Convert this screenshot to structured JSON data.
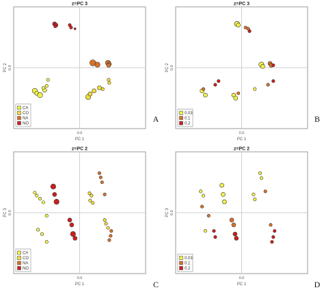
{
  "figure": {
    "panel_letters": [
      "A",
      "B",
      "C",
      "D"
    ]
  },
  "chart_data": [
    {
      "type": "scatter",
      "title": "z=PC 3",
      "xlabel": "PC 1",
      "ylabel": "PC 2",
      "xlim": [
        -1,
        1
      ],
      "ylim": [
        -1,
        1
      ],
      "xtick_label": "0.0",
      "ytick_label": "0.0",
      "legend": {
        "position": "bottom-left",
        "entries": [
          "CA",
          "CO",
          "NA",
          "NO"
        ],
        "colors": [
          "#f2f24a",
          "#f4dd38",
          "#d9732a",
          "#cc1f1f"
        ]
      },
      "series": [
        {
          "name": "CA",
          "color": "#f2f24a",
          "points": [
            [
              -0.68,
              -0.38,
              5
            ],
            [
              -0.65,
              -0.42,
              4
            ],
            [
              -0.6,
              -0.45,
              5
            ],
            [
              -0.53,
              -0.37,
              4
            ],
            [
              -0.5,
              -0.3,
              3
            ],
            [
              -0.55,
              -0.33,
              3
            ],
            [
              -0.48,
              -0.2,
              3
            ]
          ]
        },
        {
          "name": "CO",
          "color": "#f4dd38",
          "points": [
            [
              0.13,
              -0.48,
              5
            ],
            [
              0.16,
              -0.43,
              4
            ],
            [
              0.22,
              -0.38,
              4
            ],
            [
              0.3,
              -0.33,
              4
            ],
            [
              0.45,
              -0.25,
              3
            ],
            [
              0.35,
              -0.35,
              3
            ],
            [
              0.44,
              -0.2,
              3
            ]
          ]
        },
        {
          "name": "NA",
          "color": "#d9732a",
          "points": [
            [
              0.2,
              0.08,
              6
            ],
            [
              0.27,
              0.05,
              5
            ],
            [
              0.43,
              0.08,
              5
            ],
            [
              0.45,
              0.06,
              4
            ],
            [
              0.44,
              0.04,
              4
            ]
          ]
        },
        {
          "name": "NO",
          "color": "#cc1f1f",
          "points": [
            [
              -0.38,
              0.72,
              4
            ],
            [
              -0.36,
              0.7,
              4
            ],
            [
              -0.37,
              0.68,
              3
            ],
            [
              -0.15,
              0.7,
              3
            ],
            [
              -0.13,
              0.66,
              3
            ],
            [
              -0.07,
              0.64,
              2
            ]
          ]
        }
      ]
    },
    {
      "type": "scatter",
      "title": "z=PC 3",
      "xlabel": "PC 1",
      "ylabel": "PC 2",
      "xlim": [
        -1,
        1
      ],
      "ylim": [
        -1,
        1
      ],
      "xtick_label": "0.0",
      "ytick_label": "0.0",
      "legend": {
        "position": "bottom-left",
        "entries": [
          "0.03",
          "0.1",
          "0.2"
        ],
        "colors": [
          "#f2f24a",
          "#d9732a",
          "#cc1f1f"
        ]
      },
      "series": [
        {
          "name": "0.03",
          "color": "#f2f24a",
          "points": [
            [
              -0.07,
              0.72,
              5
            ],
            [
              -0.05,
              0.7,
              4
            ],
            [
              0.3,
              0.05,
              5
            ],
            [
              0.32,
              0.02,
              4
            ],
            [
              -0.6,
              -0.38,
              4
            ],
            [
              -0.55,
              -0.45,
              4
            ],
            [
              -0.12,
              -0.45,
              4
            ],
            [
              0.2,
              -0.35,
              3
            ],
            [
              -0.09,
              -0.5,
              4
            ]
          ]
        },
        {
          "name": "0.1",
          "color": "#d9732a",
          "points": [
            [
              0.06,
              0.66,
              3
            ],
            [
              0.1,
              0.64,
              3
            ],
            [
              0.43,
              0.07,
              4
            ],
            [
              0.45,
              0.04,
              4
            ],
            [
              -0.58,
              -0.35,
              3
            ],
            [
              0.4,
              -0.28,
              3
            ],
            [
              -0.05,
              -0.42,
              3
            ]
          ]
        },
        {
          "name": "0.2",
          "color": "#cc1f1f",
          "points": [
            [
              0.12,
              0.6,
              3
            ],
            [
              0.48,
              0.04,
              3
            ],
            [
              -0.35,
              -0.22,
              3
            ],
            [
              -0.4,
              -0.28,
              3
            ],
            [
              0.48,
              -0.22,
              3
            ]
          ]
        }
      ]
    },
    {
      "type": "scatter",
      "title": "z=PC 2",
      "xlabel": "PC 1",
      "ylabel": "PC 3",
      "xlim": [
        -1,
        1
      ],
      "ylim": [
        -1,
        1
      ],
      "xtick_label": "0.0",
      "ytick_label": "0.0",
      "legend": {
        "position": "bottom-left",
        "entries": [
          "CA",
          "CO",
          "NA",
          "NO"
        ],
        "colors": [
          "#f2f24a",
          "#f4dd38",
          "#d9732a",
          "#cc1f1f"
        ]
      },
      "series": [
        {
          "name": "CA",
          "color": "#f2f24a",
          "points": [
            [
              -0.68,
              0.33,
              3
            ],
            [
              -0.65,
              0.28,
              3
            ],
            [
              -0.6,
              0.23,
              3
            ],
            [
              -0.55,
              0.17,
              3
            ],
            [
              -0.5,
              -0.05,
              3
            ],
            [
              -0.63,
              -0.28,
              3
            ],
            [
              -0.57,
              -0.35,
              3
            ],
            [
              -0.5,
              -0.48,
              3
            ]
          ]
        },
        {
          "name": "CO",
          "color": "#f4dd38",
          "points": [
            [
              0.15,
              0.32,
              3
            ],
            [
              0.18,
              0.28,
              3
            ],
            [
              0.16,
              0.2,
              3
            ],
            [
              0.2,
              0.16,
              3
            ],
            [
              0.38,
              -0.12,
              3
            ],
            [
              0.4,
              -0.18,
              3
            ],
            [
              0.43,
              -0.25,
              3
            ]
          ]
        },
        {
          "name": "NA",
          "color": "#d9732a",
          "points": [
            [
              0.3,
              0.65,
              3
            ],
            [
              0.32,
              0.58,
              3
            ],
            [
              0.34,
              0.5,
              3
            ],
            [
              0.38,
              0.3,
              3
            ],
            [
              0.48,
              -0.3,
              3
            ],
            [
              0.47,
              -0.38,
              3
            ],
            [
              0.45,
              -0.45,
              3
            ]
          ]
        },
        {
          "name": "NO",
          "color": "#cc1f1f",
          "points": [
            [
              -0.4,
              0.43,
              5
            ],
            [
              -0.38,
              0.3,
              4
            ],
            [
              -0.35,
              0.18,
              5
            ],
            [
              -0.15,
              -0.12,
              4
            ],
            [
              -0.12,
              -0.2,
              4
            ],
            [
              -0.1,
              -0.35,
              5
            ],
            [
              -0.07,
              -0.42,
              4
            ]
          ]
        }
      ]
    },
    {
      "type": "scatter",
      "title": "z=PC 2",
      "xlabel": "PC 1",
      "ylabel": "PC 3",
      "xlim": [
        -1,
        1
      ],
      "ylim": [
        -1,
        1
      ],
      "xtick_label": "0.0",
      "ytick_label": "0.0",
      "legend": {
        "position": "bottom-left",
        "entries": [
          "0.03",
          "0.1",
          "0.2"
        ],
        "colors": [
          "#f2f24a",
          "#d9732a",
          "#cc1f1f"
        ]
      },
      "series": [
        {
          "name": "0.03",
          "color": "#f2f24a",
          "points": [
            [
              -0.62,
              0.35,
              3
            ],
            [
              -0.58,
              0.28,
              3
            ],
            [
              -0.3,
              0.45,
              4
            ],
            [
              -0.28,
              0.3,
              4
            ],
            [
              -0.26,
              0.18,
              4
            ],
            [
              0.28,
              0.65,
              3
            ],
            [
              0.3,
              0.57,
              3
            ],
            [
              0.18,
              0.3,
              3
            ],
            [
              0.2,
              0.22,
              3
            ],
            [
              -0.55,
              -0.3,
              3
            ]
          ]
        },
        {
          "name": "0.1",
          "color": "#d9732a",
          "points": [
            [
              -0.6,
              0.1,
              3
            ],
            [
              -0.15,
              -0.12,
              4
            ],
            [
              -0.12,
              -0.2,
              4
            ],
            [
              0.36,
              0.35,
              3
            ],
            [
              0.44,
              -0.2,
              3
            ],
            [
              -0.5,
              -0.05,
              3
            ]
          ]
        },
        {
          "name": "0.2",
          "color": "#cc1f1f",
          "points": [
            [
              -0.42,
              -0.3,
              3
            ],
            [
              -0.4,
              -0.4,
              3
            ],
            [
              -0.1,
              -0.35,
              4
            ],
            [
              -0.08,
              -0.42,
              4
            ],
            [
              0.5,
              -0.3,
              3
            ],
            [
              0.48,
              -0.4,
              3
            ],
            [
              0.46,
              -0.48,
              3
            ]
          ]
        }
      ]
    }
  ]
}
